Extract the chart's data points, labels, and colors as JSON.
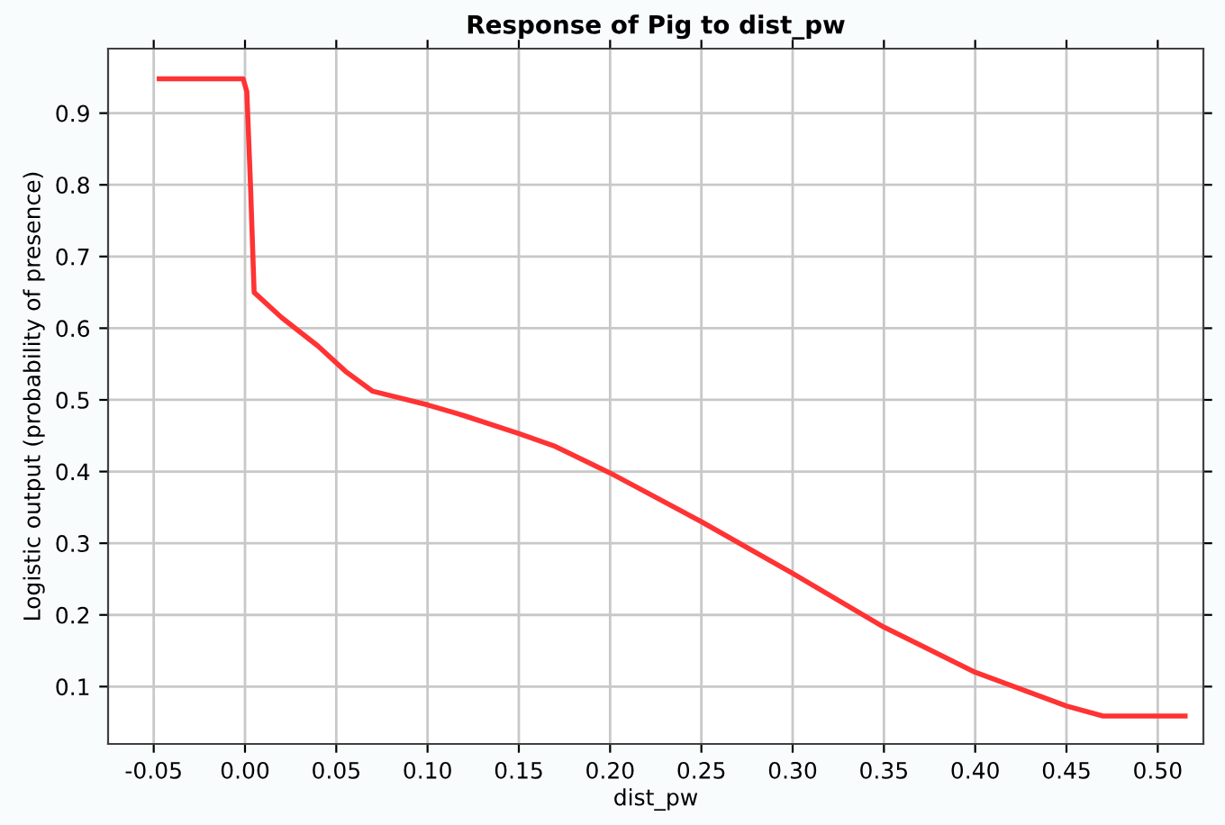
{
  "chart_data": {
    "type": "line",
    "title": "Response of Pig to dist_pw",
    "xlabel": "dist_pw",
    "ylabel": "Logistic output (probability of presence)",
    "x": [
      -0.047,
      -0.001,
      0.001,
      0.003,
      0.005,
      0.02,
      0.04,
      0.055,
      0.07,
      0.1,
      0.12,
      0.15,
      0.17,
      0.2,
      0.25,
      0.3,
      0.35,
      0.4,
      0.45,
      0.47,
      0.515
    ],
    "series": [
      {
        "color": "#ff3333",
        "values": [
          0.948,
          0.948,
          0.93,
          0.8,
          0.65,
          0.615,
          0.575,
          0.54,
          0.512,
          0.493,
          0.478,
          0.453,
          0.435,
          0.398,
          0.33,
          0.258,
          0.183,
          0.12,
          0.073,
          0.059,
          0.059
        ]
      }
    ],
    "xlim": [
      -0.075,
      0.525
    ],
    "ylim": [
      0.02,
      0.99
    ],
    "xticks": [
      {
        "value": -0.05,
        "label": "-0.05"
      },
      {
        "value": 0.0,
        "label": "0.00"
      },
      {
        "value": 0.05,
        "label": "0.05"
      },
      {
        "value": 0.1,
        "label": "0.10"
      },
      {
        "value": 0.15,
        "label": "0.15"
      },
      {
        "value": 0.2,
        "label": "0.20"
      },
      {
        "value": 0.25,
        "label": "0.25"
      },
      {
        "value": 0.3,
        "label": "0.30"
      },
      {
        "value": 0.35,
        "label": "0.35"
      },
      {
        "value": 0.4,
        "label": "0.40"
      },
      {
        "value": 0.45,
        "label": "0.45"
      },
      {
        "value": 0.5,
        "label": "0.50"
      }
    ],
    "yticks": [
      0.1,
      0.2,
      0.3,
      0.4,
      0.5,
      0.6,
      0.7,
      0.8,
      0.9
    ],
    "grid": true,
    "legend": false,
    "marker": "none",
    "line_style": "solid"
  }
}
